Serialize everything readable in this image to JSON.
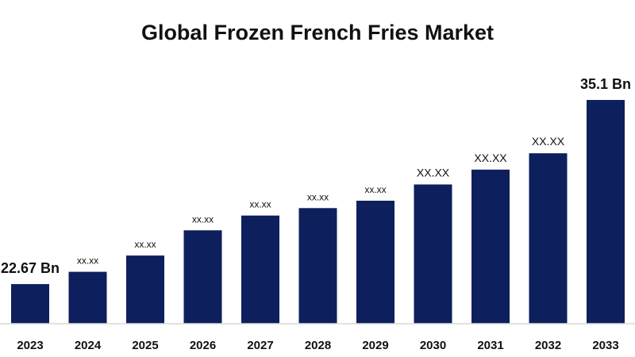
{
  "chart_data": {
    "type": "bar",
    "title": "Global Frozen French Fries Market",
    "xlabel": "",
    "ylabel": "",
    "categories": [
      "2023",
      "2024",
      "2025",
      "2026",
      "2027",
      "2028",
      "2029",
      "2030",
      "2031",
      "2032",
      "2033"
    ],
    "values": [
      22.67,
      23.5,
      24.6,
      26.3,
      27.3,
      27.8,
      28.3,
      29.4,
      30.4,
      31.5,
      35.1
    ],
    "data_labels": [
      "22.67 Bn",
      "xx.xx",
      "xx.xx",
      "xx.xx",
      "xx.xx",
      "xx.xx",
      "xx.xx",
      "XX.XX",
      "XX.XX",
      "XX.XX",
      "35.1 Bn"
    ],
    "ylim": [
      20,
      35.1
    ],
    "grid": false,
    "legend": "none",
    "bar_color": "#0d1f5c",
    "axis_color": "#d9d9d9"
  }
}
